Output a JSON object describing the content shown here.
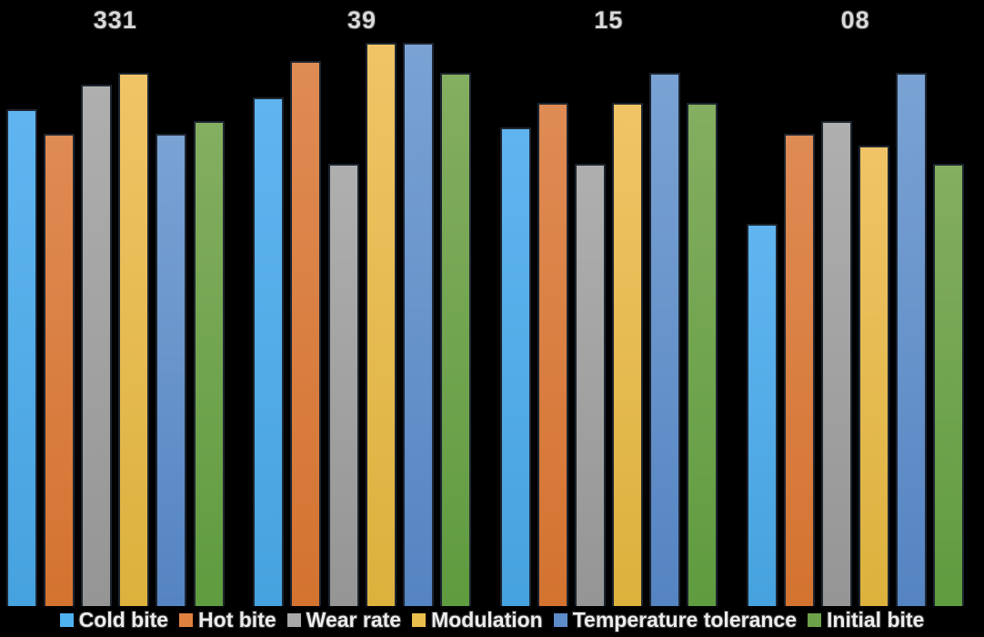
{
  "chart_data": {
    "type": "bar",
    "title": "",
    "categories": [
      "331",
      "39",
      "15",
      "08"
    ],
    "series": [
      {
        "name": "Cold bite",
        "legend_color": "#4FB1F0",
        "color_top": "#60B5F0",
        "color_bottom": "#46A2DE",
        "values": [
          8.2,
          8.4,
          7.9,
          6.3
        ]
      },
      {
        "name": "Hot bite",
        "legend_color": "#E0823F",
        "color_top": "#DF8B54",
        "color_bottom": "#D47330",
        "values": [
          7.8,
          9.0,
          8.3,
          7.8
        ]
      },
      {
        "name": "Wear rate",
        "legend_color": "#A8A8A8",
        "color_top": "#AFAFAF",
        "color_bottom": "#959595",
        "values": [
          8.6,
          7.3,
          7.3,
          8.0
        ]
      },
      {
        "name": "Modulation",
        "legend_color": "#E9BE4D",
        "color_top": "#F0C466",
        "color_bottom": "#DCB13C",
        "values": [
          8.8,
          9.3,
          8.3,
          7.6
        ]
      },
      {
        "name": "Temperature tolerance",
        "legend_color": "#5C8CC9",
        "color_top": "#7AA3D4",
        "color_bottom": "#5584C2",
        "values": [
          7.8,
          9.3,
          8.8,
          8.8
        ]
      },
      {
        "name": "Initial bite",
        "legend_color": "#6CA149",
        "color_top": "#84AE60",
        "color_bottom": "#5F9B3F",
        "values": [
          8.0,
          8.8,
          8.3,
          7.3
        ]
      }
    ],
    "ylim": [
      0,
      10
    ],
    "xlabel": "",
    "ylabel": "",
    "grid": false,
    "axes_visible": false,
    "legend_position": "bottom",
    "background": "#000000",
    "label_color": "#d9d9d9"
  }
}
